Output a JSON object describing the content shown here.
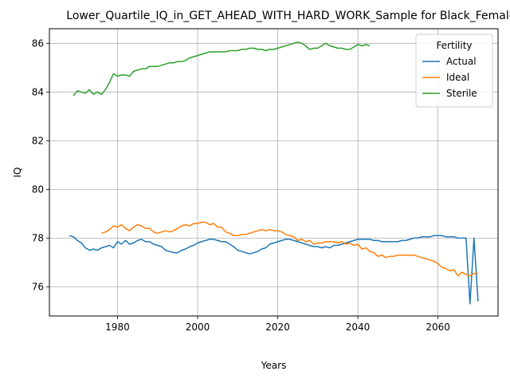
{
  "chart_data": {
    "type": "line",
    "title": "Lower_Quartile_IQ_in_GET_AHEAD_WITH_HARD_WORK_Sample for Black_Females",
    "xlabel": "Years",
    "ylabel": "IQ",
    "xlim": [
      1963,
      2075
    ],
    "ylim": [
      74.8,
      86.6
    ],
    "xticks": [
      1980,
      2000,
      2020,
      2040,
      2060
    ],
    "yticks": [
      76,
      78,
      80,
      82,
      84,
      86
    ],
    "grid": true,
    "legend": {
      "title": "Fertility",
      "position": "top-right"
    },
    "series": [
      {
        "name": "Actual",
        "color": "#1f77b4",
        "x": [
          1968,
          1969,
          1970,
          1971,
          1972,
          1973,
          1974,
          1975,
          1976,
          1977,
          1978,
          1979,
          1980,
          1981,
          1982,
          1983,
          1984,
          1985,
          1986,
          1987,
          1988,
          1989,
          1990,
          1991,
          1992,
          1993,
          1994,
          1995,
          1996,
          1997,
          1998,
          1999,
          2000,
          2001,
          2002,
          2003,
          2004,
          2005,
          2006,
          2007,
          2008,
          2009,
          2010,
          2011,
          2012,
          2013,
          2014,
          2015,
          2016,
          2017,
          2018,
          2019,
          2020,
          2021,
          2022,
          2023,
          2024,
          2025,
          2026,
          2027,
          2028,
          2029,
          2030,
          2031,
          2032,
          2033,
          2034,
          2035,
          2036,
          2037,
          2038,
          2039,
          2040,
          2041,
          2042,
          2043,
          2044,
          2045,
          2046,
          2047,
          2048,
          2049,
          2050,
          2051,
          2052,
          2053,
          2054,
          2055,
          2056,
          2057,
          2058,
          2059,
          2060,
          2061,
          2062,
          2063,
          2064,
          2065,
          2066,
          2067,
          2068,
          2069,
          2070
        ],
        "values": [
          78.1,
          78.05,
          77.9,
          77.8,
          77.6,
          77.5,
          77.55,
          77.5,
          77.6,
          77.65,
          77.7,
          77.6,
          77.85,
          77.75,
          77.9,
          77.75,
          77.8,
          77.9,
          77.95,
          77.85,
          77.85,
          77.75,
          77.7,
          77.65,
          77.5,
          77.45,
          77.4,
          77.4,
          77.5,
          77.55,
          77.65,
          77.7,
          77.8,
          77.85,
          77.9,
          77.95,
          77.95,
          77.9,
          77.85,
          77.85,
          77.75,
          77.65,
          77.5,
          77.45,
          77.4,
          77.35,
          77.4,
          77.45,
          77.55,
          77.6,
          77.75,
          77.8,
          77.85,
          77.9,
          77.95,
          77.95,
          77.9,
          77.85,
          77.8,
          77.75,
          77.7,
          77.65,
          77.65,
          77.6,
          77.65,
          77.6,
          77.7,
          77.7,
          77.75,
          77.8,
          77.85,
          77.9,
          77.95,
          77.95,
          77.95,
          77.95,
          77.9,
          77.9,
          77.85,
          77.85,
          77.85,
          77.85,
          77.85,
          77.9,
          77.9,
          77.95,
          78.0,
          78.0,
          78.05,
          78.05,
          78.05,
          78.1,
          78.1,
          78.1,
          78.05,
          78.05,
          78.05,
          78.0,
          78.0,
          78.0,
          75.3,
          78.0,
          75.4
        ]
      },
      {
        "name": "Ideal",
        "color": "#ff7f0e",
        "x": [
          1976,
          1977,
          1978,
          1979,
          1980,
          1981,
          1982,
          1983,
          1984,
          1985,
          1986,
          1987,
          1988,
          1989,
          1990,
          1991,
          1992,
          1993,
          1994,
          1995,
          1996,
          1997,
          1998,
          1999,
          2000,
          2001,
          2002,
          2003,
          2004,
          2005,
          2006,
          2007,
          2008,
          2009,
          2010,
          2011,
          2012,
          2013,
          2014,
          2015,
          2016,
          2017,
          2018,
          2019,
          2020,
          2021,
          2022,
          2023,
          2024,
          2025,
          2026,
          2027,
          2028,
          2029,
          2030,
          2031,
          2032,
          2033,
          2034,
          2035,
          2036,
          2037,
          2038,
          2039,
          2040,
          2041,
          2042,
          2043,
          2044,
          2045,
          2046,
          2047,
          2048,
          2049,
          2050,
          2051,
          2052,
          2053,
          2054,
          2055,
          2056,
          2057,
          2058,
          2059,
          2060,
          2061,
          2062,
          2063,
          2064,
          2065,
          2066,
          2067,
          2068,
          2069,
          2070
        ],
        "values": [
          78.2,
          78.25,
          78.35,
          78.5,
          78.45,
          78.55,
          78.4,
          78.3,
          78.45,
          78.55,
          78.5,
          78.4,
          78.4,
          78.25,
          78.2,
          78.25,
          78.3,
          78.25,
          78.3,
          78.4,
          78.5,
          78.55,
          78.5,
          78.6,
          78.6,
          78.65,
          78.65,
          78.55,
          78.6,
          78.45,
          78.45,
          78.25,
          78.2,
          78.1,
          78.1,
          78.15,
          78.15,
          78.2,
          78.25,
          78.3,
          78.35,
          78.3,
          78.35,
          78.3,
          78.3,
          78.25,
          78.15,
          78.1,
          78.05,
          77.9,
          77.95,
          77.85,
          77.9,
          77.75,
          77.8,
          77.8,
          77.85,
          77.85,
          77.85,
          77.8,
          77.85,
          77.75,
          77.8,
          77.7,
          77.75,
          77.55,
          77.6,
          77.45,
          77.4,
          77.25,
          77.3,
          77.2,
          77.25,
          77.25,
          77.3,
          77.3,
          77.3,
          77.3,
          77.3,
          77.25,
          77.2,
          77.15,
          77.1,
          77.05,
          76.95,
          76.8,
          76.75,
          76.65,
          76.7,
          76.45,
          76.6,
          76.5,
          76.45,
          76.55,
          76.55
        ]
      },
      {
        "name": "Sterile",
        "color": "#2ca02c",
        "x": [
          1969,
          1970,
          1971,
          1972,
          1973,
          1974,
          1975,
          1976,
          1977,
          1978,
          1979,
          1980,
          1981,
          1982,
          1983,
          1984,
          1985,
          1986,
          1987,
          1988,
          1989,
          1990,
          1991,
          1992,
          1993,
          1994,
          1995,
          1996,
          1997,
          1998,
          1999,
          2000,
          2001,
          2002,
          2003,
          2004,
          2005,
          2006,
          2007,
          2008,
          2009,
          2010,
          2011,
          2012,
          2013,
          2014,
          2015,
          2016,
          2017,
          2018,
          2019,
          2020,
          2021,
          2022,
          2023,
          2024,
          2025,
          2026,
          2027,
          2028,
          2029,
          2030,
          2031,
          2032,
          2033,
          2034,
          2035,
          2036,
          2037,
          2038,
          2039,
          2040,
          2041,
          2042,
          2043
        ],
        "values": [
          83.85,
          84.05,
          84.0,
          83.95,
          84.1,
          83.9,
          84.0,
          83.9,
          84.1,
          84.4,
          84.75,
          84.65,
          84.7,
          84.7,
          84.65,
          84.85,
          84.9,
          84.95,
          84.95,
          85.05,
          85.05,
          85.05,
          85.1,
          85.15,
          85.2,
          85.2,
          85.25,
          85.25,
          85.3,
          85.4,
          85.45,
          85.5,
          85.55,
          85.6,
          85.65,
          85.65,
          85.65,
          85.65,
          85.65,
          85.7,
          85.7,
          85.7,
          85.75,
          85.75,
          85.8,
          85.8,
          85.75,
          85.75,
          85.7,
          85.75,
          85.75,
          85.8,
          85.85,
          85.9,
          85.95,
          86.0,
          86.05,
          86.0,
          85.9,
          85.75,
          85.8,
          85.8,
          85.9,
          86.0,
          85.9,
          85.85,
          85.8,
          85.8,
          85.75,
          85.75,
          85.85,
          85.95,
          85.9,
          85.95,
          85.9
        ]
      }
    ]
  }
}
